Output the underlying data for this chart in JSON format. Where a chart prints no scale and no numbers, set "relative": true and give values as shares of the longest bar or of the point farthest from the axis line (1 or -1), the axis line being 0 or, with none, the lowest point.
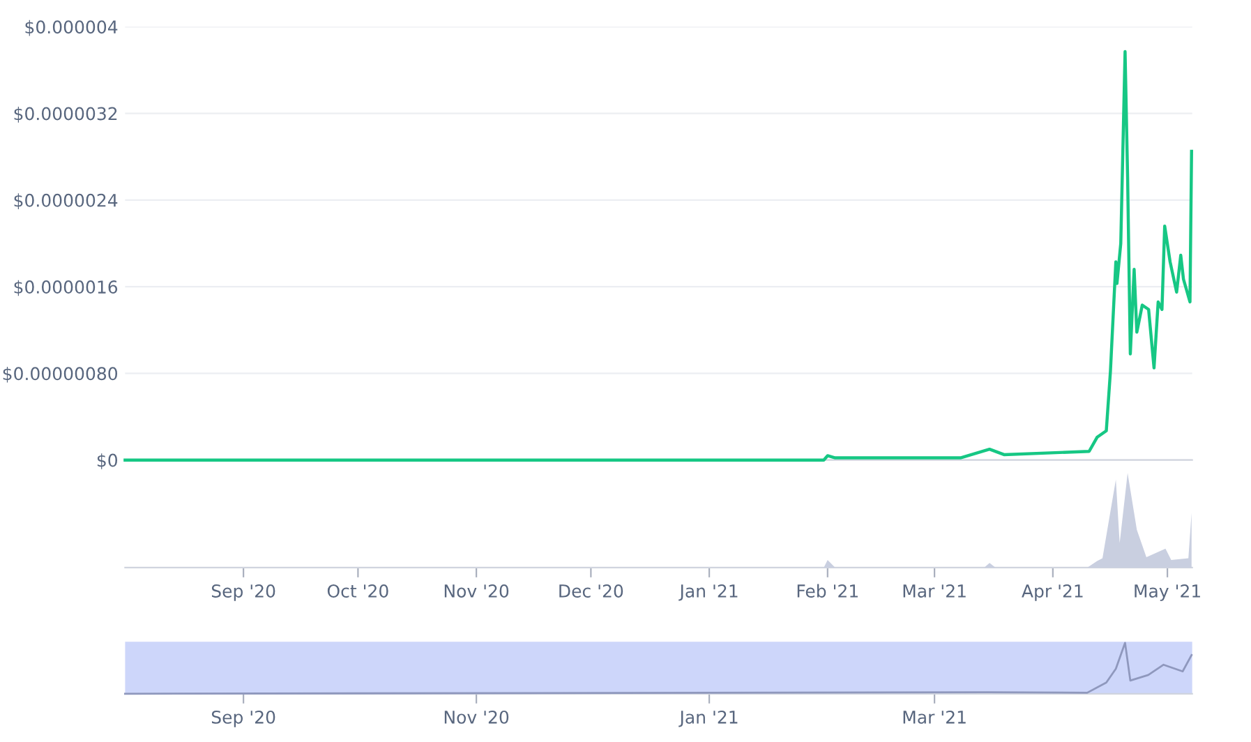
{
  "chart_data": [
    {
      "type": "line",
      "xlim": [
        "2020-08-01",
        "2021-05-07T12:00"
      ],
      "ylim": [
        0,
        4e-06
      ],
      "yticks": [
        {
          "value": 0,
          "label": "$0"
        },
        {
          "value": 8e-07,
          "label": "$0.00000080"
        },
        {
          "value": 1.6e-06,
          "label": "$0.0000016"
        },
        {
          "value": 2.4e-06,
          "label": "$0.0000024"
        },
        {
          "value": 3.2e-06,
          "label": "$0.0000032"
        },
        {
          "value": 4e-06,
          "label": "$0.000004"
        }
      ],
      "tick_labels": "y",
      "grid": "y",
      "series": [
        {
          "color": "#16c784",
          "x": [
            "2020-08-01",
            "2020-10-01",
            "2020-12-01",
            "2021-01-31",
            "2021-02-01",
            "2021-02-03",
            "2021-02-20",
            "2021-03-07T19:00",
            "2021-03-15T10:00",
            "2021-03-19T05:00",
            "2021-04-10T12:00",
            "2021-04-12T14:00",
            "2021-04-15",
            "2021-04-16T02:00",
            "2021-04-17T12:00",
            "2021-04-17T19:00",
            "2021-04-18T19:00",
            "2021-04-19T22:00",
            "2021-04-20T14:00",
            "2021-04-21T07:00",
            "2021-04-22T07:00",
            "2021-04-23",
            "2021-04-24T10:00",
            "2021-04-26T02:00",
            "2021-04-27T12:00",
            "2021-04-28T14:00",
            "2021-04-29T14:00",
            "2021-04-30T07:00",
            "2021-05-01T17:00",
            "2021-05-03T10:00",
            "2021-05-04T12:00",
            "2021-05-05T05:00",
            "2021-05-06T22:00",
            "2021-05-07T08:00"
          ],
          "values": [
            0,
            0,
            0,
            0,
            4e-08,
            2e-08,
            2e-08,
            2e-08,
            1e-07,
            5e-08,
            8e-08,
            2.1e-07,
            2.7e-07,
            8.2e-07,
            1.83e-06,
            1.63e-06,
            2e-06,
            3.77e-06,
            2.61e-06,
            9.8e-07,
            1.76e-06,
            1.18e-06,
            1.43e-06,
            1.39e-06,
            8.5e-07,
            1.46e-06,
            1.39e-06,
            2.16e-06,
            1.83e-06,
            1.55e-06,
            1.89e-06,
            1.67e-06,
            1.46e-06,
            2.85e-06
          ]
        }
      ]
    },
    {
      "type": "area",
      "relative": true,
      "xlim": [
        "2020-08-01",
        "2021-05-07T12:00"
      ],
      "tick_labels": "x",
      "xticks": [
        {
          "value": "2020-09-01",
          "label": "Sep '20"
        },
        {
          "value": "2020-10-01",
          "label": "Oct '20"
        },
        {
          "value": "2020-11-01",
          "label": "Nov '20"
        },
        {
          "value": "2020-12-01",
          "label": "Dec '20"
        },
        {
          "value": "2021-01-01",
          "label": "Jan '21"
        },
        {
          "value": "2021-02-01",
          "label": "Feb '21"
        },
        {
          "value": "2021-03-01",
          "label": "Mar '21"
        },
        {
          "value": "2021-04-01",
          "label": "Apr '21"
        },
        {
          "value": "2021-05-01",
          "label": "May '21"
        }
      ],
      "series": [
        {
          "color": "#c9cfe0",
          "x": [
            "2020-08-01",
            "2021-01-31",
            "2021-02-01",
            "2021-02-03",
            "2021-03-14",
            "2021-03-15T10:00",
            "2021-03-17",
            "2021-04-10",
            "2021-04-12T14:00",
            "2021-04-14",
            "2021-04-17T12:00",
            "2021-04-18T12:00",
            "2021-04-20T14:00",
            "2021-04-23",
            "2021-04-25T12:00",
            "2021-04-30T12:00",
            "2021-05-02",
            "2021-05-06T12:00",
            "2021-05-07T08:00"
          ],
          "values": [
            0,
            0,
            0.08,
            0,
            0,
            0.05,
            0,
            0,
            0.07,
            0.1,
            0.93,
            0.26,
            1.0,
            0.4,
            0.11,
            0.2,
            0.08,
            0.1,
            0.58
          ]
        }
      ]
    },
    {
      "type": "line",
      "relative": true,
      "xlim": [
        "2020-08-01",
        "2021-05-07T12:00"
      ],
      "tick_labels": "x",
      "xticks": [
        {
          "value": "2020-09-01",
          "label": "Sep '20"
        },
        {
          "value": "2020-11-01",
          "label": "Nov '20"
        },
        {
          "value": "2021-01-01",
          "label": "Jan '21"
        },
        {
          "value": "2021-03-01",
          "label": "Mar '21"
        }
      ],
      "series": [
        {
          "color": "#8f98bd",
          "x": [
            "2020-08-01",
            "2021-03-15",
            "2021-04-10",
            "2021-04-15",
            "2021-04-17T12:00",
            "2021-04-19T22:00",
            "2021-04-21T07:00",
            "2021-04-26",
            "2021-04-30",
            "2021-05-05",
            "2021-05-07T08:00"
          ],
          "values": [
            0,
            0.03,
            0.02,
            0.22,
            0.49,
            1.0,
            0.26,
            0.37,
            0.57,
            0.44,
            0.76
          ]
        }
      ]
    }
  ]
}
